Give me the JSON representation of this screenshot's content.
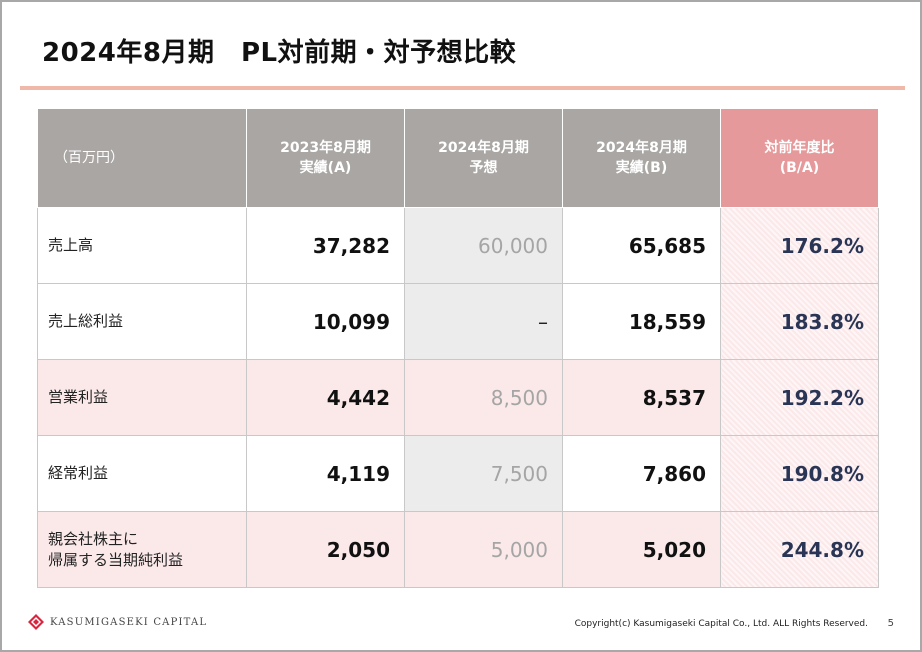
{
  "title": "2024年8月期　PL対前期・対予想比較",
  "colors": {
    "accent_rule": "#f0b8a8",
    "header_bg": "#a9a6a4",
    "header_highlight": "#e6999a",
    "row_pink": "#fbe9ea",
    "forecast_bg": "#ececec",
    "ratio_text": "#2a3555",
    "logo_red": "#d7263d"
  },
  "table": {
    "headers": [
      {
        "line1": "（百万円）",
        "line2": ""
      },
      {
        "line1": "2023年8月期",
        "line2": "実績(A)"
      },
      {
        "line1": "2024年8月期",
        "line2": "予想"
      },
      {
        "line1": "2024年8月期",
        "line2": "実績(B)"
      },
      {
        "line1": "対前年度比",
        "line2": "(B/A)"
      }
    ],
    "rows": [
      {
        "label1": "売上高",
        "label2": "",
        "fy2023": "37,282",
        "forecast": "60,000",
        "fy2024": "65,685",
        "ratio": "176.2%"
      },
      {
        "label1": "売上総利益",
        "label2": "",
        "fy2023": "10,099",
        "forecast": "–",
        "fy2024": "18,559",
        "ratio": "183.8%"
      },
      {
        "label1": "営業利益",
        "label2": "",
        "fy2023": "4,442",
        "forecast": "8,500",
        "fy2024": "8,537",
        "ratio": "192.2%"
      },
      {
        "label1": "経常利益",
        "label2": "",
        "fy2023": "4,119",
        "forecast": "7,500",
        "fy2024": "7,860",
        "ratio": "190.8%"
      },
      {
        "label1": "親会社株主に",
        "label2": "帰属する当期純利益",
        "fy2023": "2,050",
        "forecast": "5,000",
        "fy2024": "5,020",
        "ratio": "244.8%"
      }
    ]
  },
  "footer": {
    "logo_icon": "kasumigaseki-logo-icon",
    "logo_text": "KASUMIGASEKI CAPITAL",
    "copyright": "Copyright(c) Kasumigaseki Capital Co., Ltd. ALL Rights Reserved.",
    "page_number": "5"
  }
}
